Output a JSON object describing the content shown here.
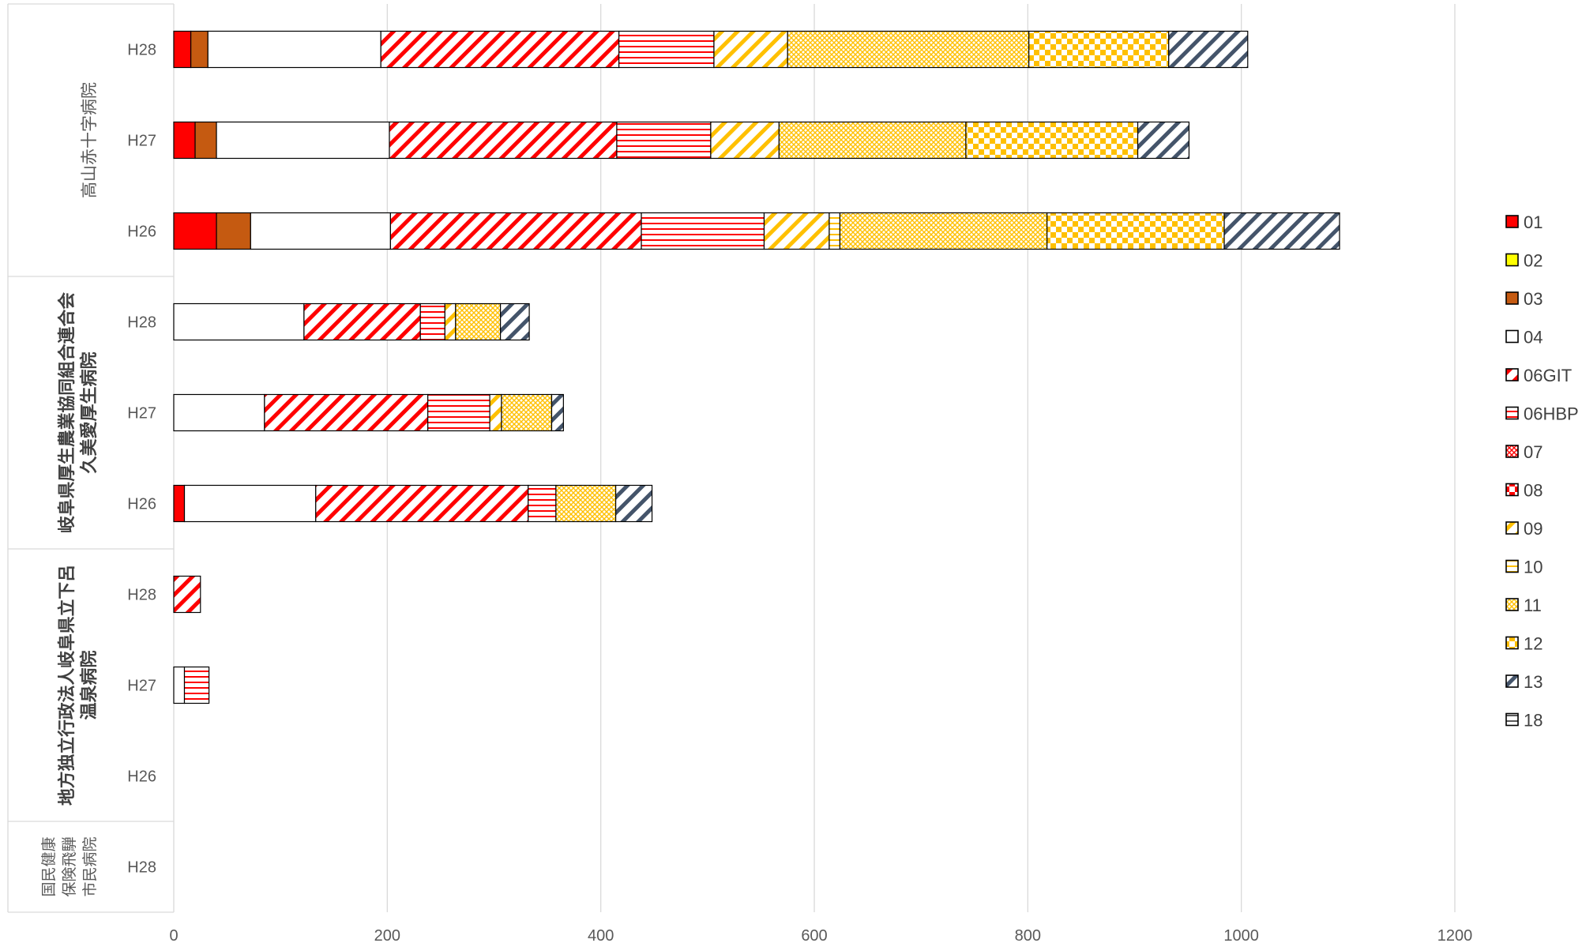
{
  "chart_data": {
    "type": "bar",
    "orientation": "horizontal",
    "stacked": true,
    "xlim": [
      0,
      1200
    ],
    "x_ticks": [
      "0",
      "200",
      "400",
      "600",
      "800",
      "1000",
      "1200"
    ],
    "grid": true,
    "legend_position": "right",
    "groups": [
      {
        "label_lines": [
          "高山赤十字病院"
        ],
        "style": "normal",
        "rows": [
          "H28",
          "H27",
          "H26"
        ]
      },
      {
        "label_lines": [
          "岐阜県厚生農業協同組合連合会",
          "久美愛厚生病院"
        ],
        "style": "bold",
        "rows": [
          "H28",
          "H27",
          "H26"
        ]
      },
      {
        "label_lines": [
          "地方独立行政法人岐阜県立下呂",
          "温泉病院"
        ],
        "style": "bold",
        "rows": [
          "H28",
          "H27",
          "H26"
        ]
      },
      {
        "label_lines": [
          "国民健康",
          "保険飛騨",
          "市民病院"
        ],
        "style": "small",
        "rows": [
          "H28"
        ]
      }
    ],
    "categories": [
      "高山赤十字病院 H28",
      "高山赤十字病院 H27",
      "高山赤十字病院 H26",
      "久美愛厚生病院 H28",
      "久美愛厚生病院 H27",
      "久美愛厚生病院 H26",
      "下呂温泉病院 H28",
      "下呂温泉病院 H27",
      "下呂温泉病院 H26",
      "飛騨市民病院 H28"
    ],
    "series": [
      {
        "name": "01",
        "color": "#ff0000",
        "pattern": "solid",
        "values": [
          16,
          20,
          40,
          0,
          0,
          10,
          0,
          0,
          0,
          0
        ]
      },
      {
        "name": "02",
        "color": "#ffff00",
        "pattern": "solid",
        "values": [
          0,
          0,
          0,
          0,
          0,
          0,
          0,
          0,
          0,
          0
        ]
      },
      {
        "name": "03",
        "color": "#c55a11",
        "pattern": "solid",
        "values": [
          16,
          20,
          32,
          0,
          0,
          0,
          0,
          0,
          0,
          0
        ]
      },
      {
        "name": "04",
        "color": "#ffffff",
        "pattern": "solid",
        "values": [
          162,
          162,
          131,
          122,
          85,
          123,
          0,
          10,
          0,
          0
        ]
      },
      {
        "name": "06GIT",
        "color": "#ff0000",
        "pattern": "diag",
        "values": [
          223,
          213,
          235,
          109,
          153,
          199,
          25,
          0,
          0,
          0
        ]
      },
      {
        "name": "06HBP",
        "color": "#ff0000",
        "pattern": "hstripe",
        "values": [
          89,
          88,
          115,
          23,
          58,
          26,
          0,
          23,
          0,
          0
        ]
      },
      {
        "name": "07",
        "color": "#ff0000",
        "pattern": "cross",
        "values": [
          0,
          0,
          0,
          0,
          0,
          0,
          0,
          0,
          0,
          0
        ]
      },
      {
        "name": "08",
        "color": "#ff0000",
        "pattern": "check",
        "values": [
          0,
          0,
          0,
          0,
          0,
          0,
          0,
          0,
          0,
          0
        ]
      },
      {
        "name": "09",
        "color": "#ffc000",
        "pattern": "diag",
        "values": [
          69,
          64,
          61,
          10,
          11,
          0,
          0,
          0,
          0,
          0
        ]
      },
      {
        "name": "10",
        "color": "#ffc000",
        "pattern": "hstripe",
        "values": [
          0,
          0,
          10,
          0,
          0,
          0,
          0,
          0,
          0,
          0
        ]
      },
      {
        "name": "11",
        "color": "#ffc000",
        "pattern": "cross",
        "values": [
          226,
          175,
          194,
          42,
          47,
          56,
          0,
          0,
          0,
          0
        ]
      },
      {
        "name": "12",
        "color": "#ffc000",
        "pattern": "check",
        "values": [
          131,
          161,
          166,
          0,
          0,
          0,
          0,
          0,
          0,
          0
        ]
      },
      {
        "name": "13",
        "color": "#44546a",
        "pattern": "diag",
        "values": [
          74,
          48,
          108,
          27,
          11,
          34,
          0,
          0,
          0,
          0
        ]
      },
      {
        "name": "18",
        "color": "#595959",
        "pattern": "hstripe",
        "values": [
          0,
          0,
          0,
          0,
          0,
          0,
          0,
          0,
          0,
          0
        ]
      }
    ]
  }
}
